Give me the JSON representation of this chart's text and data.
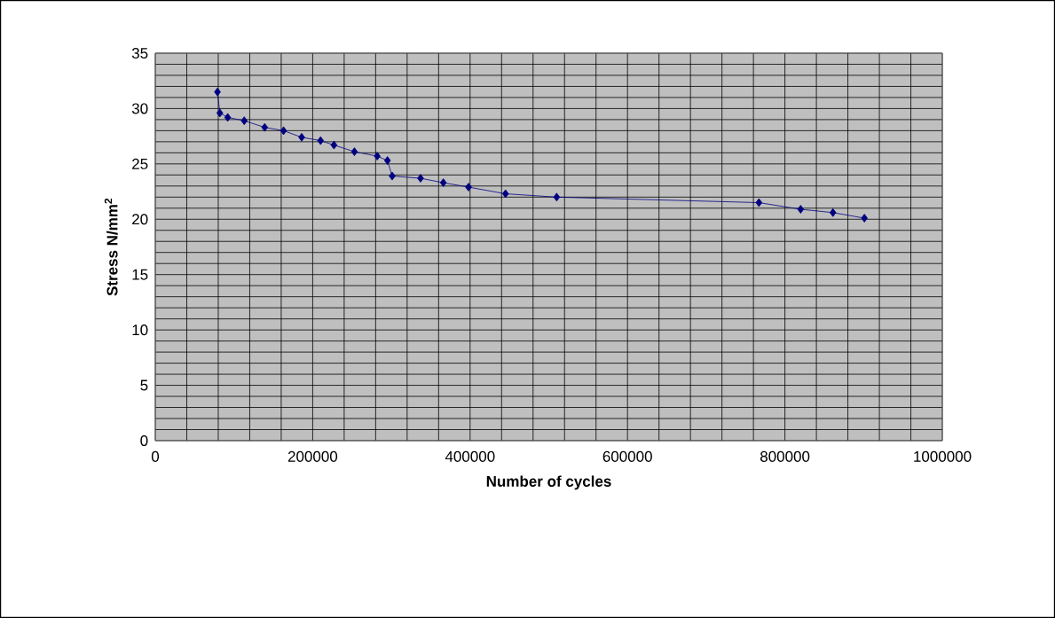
{
  "chart_data": {
    "type": "line",
    "xlabel": "Number of cycles",
    "ylabel": "Stress N/mm$^{2}$",
    "x": [
      79000,
      82000,
      92000,
      113000,
      139000,
      163000,
      186000,
      210000,
      227000,
      253000,
      282000,
      295000,
      301000,
      337000,
      366000,
      398000,
      445000,
      510000,
      767000,
      820000,
      861000,
      901000
    ],
    "values": [
      31.5,
      29.6,
      29.2,
      28.9,
      28.3,
      28.0,
      27.4,
      27.1,
      26.7,
      26.1,
      25.7,
      25.3,
      23.9,
      23.7,
      23.3,
      22.9,
      22.3,
      22.0,
      21.5,
      20.9,
      20.6,
      20.1
    ],
    "color": "#000080",
    "marker": "diamond",
    "line_style": "solid",
    "grid": true,
    "xlim": [
      0,
      1000000
    ],
    "ylim": [
      0,
      35
    ],
    "xticks": [
      0,
      {
        "value": 40000,
        "label": null
      },
      {
        "value": 80000,
        "label": null
      },
      {
        "value": 120000,
        "label": null
      },
      {
        "value": 160000,
        "label": null
      },
      200000,
      {
        "value": 240000,
        "label": null
      },
      {
        "value": 280000,
        "label": null
      },
      {
        "value": 320000,
        "label": null
      },
      {
        "value": 360000,
        "label": null
      },
      400000,
      {
        "value": 440000,
        "label": null
      },
      {
        "value": 480000,
        "label": null
      },
      {
        "value": 520000,
        "label": null
      },
      {
        "value": 560000,
        "label": null
      },
      600000,
      {
        "value": 640000,
        "label": null
      },
      {
        "value": 680000,
        "label": null
      },
      {
        "value": 720000,
        "label": null
      },
      {
        "value": 760000,
        "label": null
      },
      800000,
      {
        "value": 840000,
        "label": null
      },
      {
        "value": 880000,
        "label": null
      },
      {
        "value": 920000,
        "label": null
      },
      {
        "value": 960000,
        "label": null
      },
      1000000
    ],
    "yticks": [
      0,
      {
        "value": 1,
        "label": null
      },
      {
        "value": 2,
        "label": null
      },
      {
        "value": 3,
        "label": null
      },
      {
        "value": 4,
        "label": null
      },
      5,
      {
        "value": 6,
        "label": null
      },
      {
        "value": 7,
        "label": null
      },
      {
        "value": 8,
        "label": null
      },
      {
        "value": 9,
        "label": null
      },
      10,
      {
        "value": 11,
        "label": null
      },
      {
        "value": 12,
        "label": null
      },
      {
        "value": 13,
        "label": null
      },
      {
        "value": 14,
        "label": null
      },
      15,
      {
        "value": 16,
        "label": null
      },
      {
        "value": 17,
        "label": null
      },
      {
        "value": 18,
        "label": null
      },
      {
        "value": 19,
        "label": null
      },
      20,
      {
        "value": 21,
        "label": null
      },
      {
        "value": 22,
        "label": null
      },
      {
        "value": 23,
        "label": null
      },
      {
        "value": 24,
        "label": null
      },
      25,
      {
        "value": 26,
        "label": null
      },
      {
        "value": 27,
        "label": null
      },
      {
        "value": 28,
        "label": null
      },
      {
        "value": 29,
        "label": null
      },
      30,
      {
        "value": 31,
        "label": null
      },
      {
        "value": 32,
        "label": null
      },
      {
        "value": 33,
        "label": null
      },
      {
        "value": 34,
        "label": null
      },
      35
    ]
  }
}
